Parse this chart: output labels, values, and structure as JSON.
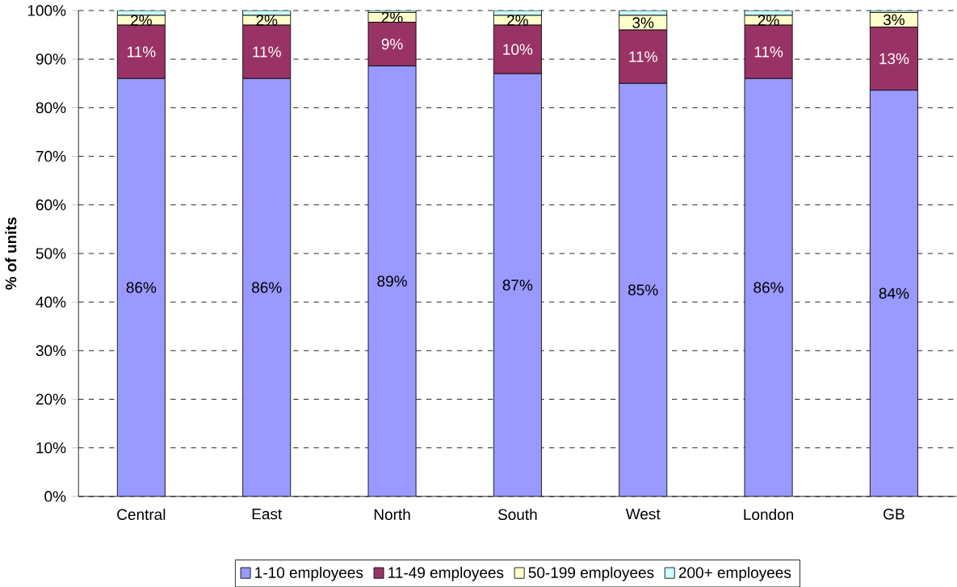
{
  "chart_data": {
    "type": "bar",
    "stacked": true,
    "ylabel": "% of units",
    "categories": [
      "Central",
      "East",
      "North",
      "South",
      "West",
      "London",
      "GB"
    ],
    "series": [
      {
        "name": "1-10 employees",
        "color": "#9999ff",
        "values": [
          86,
          86,
          88.6,
          87,
          85,
          86,
          83.6
        ],
        "value_labels": [
          "86%",
          "86%",
          "89%",
          "87%",
          "85%",
          "86%",
          "84%"
        ]
      },
      {
        "name": "11-49 employees",
        "color": "#993366",
        "values": [
          11,
          11,
          9,
          10,
          11,
          11,
          13
        ],
        "value_labels": [
          "11%",
          "11%",
          "9%",
          "10%",
          "11%",
          "11%",
          "13%"
        ]
      },
      {
        "name": "50-199 employees",
        "color": "#ffffcc",
        "values": [
          2,
          2,
          2,
          2,
          3,
          2,
          3
        ],
        "value_labels": [
          "2%",
          "2%",
          "2%",
          "2%",
          "3%",
          "2%",
          "3%"
        ]
      },
      {
        "name": "200+ employees",
        "color": "#ccffff",
        "values": [
          1,
          1,
          0.4,
          1,
          1,
          1,
          0.4
        ]
      }
    ],
    "ylim": [
      0,
      100
    ],
    "yticks": [
      {
        "value": 0,
        "label": "0%"
      },
      {
        "value": 10,
        "label": "10%"
      },
      {
        "value": 20,
        "label": "20%"
      },
      {
        "value": 30,
        "label": "30%"
      },
      {
        "value": 40,
        "label": "40%"
      },
      {
        "value": 50,
        "label": "50%"
      },
      {
        "value": 60,
        "label": "60%"
      },
      {
        "value": 70,
        "label": "70%"
      },
      {
        "value": 80,
        "label": "80%"
      },
      {
        "value": 90,
        "label": "90%"
      },
      {
        "value": 100,
        "label": "100%"
      }
    ],
    "grid": "y",
    "legend": "bottom"
  }
}
